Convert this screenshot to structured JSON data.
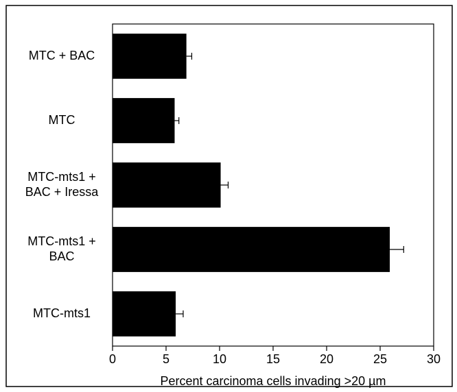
{
  "chart_data": {
    "type": "bar",
    "orientation": "horizontal",
    "x_label": "Percent carcinoma cells invading >20 µm",
    "categories": [
      [
        "MTC + BAC"
      ],
      [
        "MTC"
      ],
      [
        "MTC-mts1 +",
        "BAC + Iressa"
      ],
      [
        "MTC-mts1 +",
        "BAC"
      ],
      [
        "MTC-mts1"
      ]
    ],
    "values": [
      6.9,
      5.8,
      10.1,
      25.9,
      5.9
    ],
    "errors": [
      0.5,
      0.4,
      0.7,
      1.3,
      0.7
    ],
    "color": "#000000",
    "xlim": [
      0,
      30
    ],
    "xticks": [
      0,
      5,
      10,
      15,
      20,
      25,
      30
    ],
    "grid": false
  }
}
